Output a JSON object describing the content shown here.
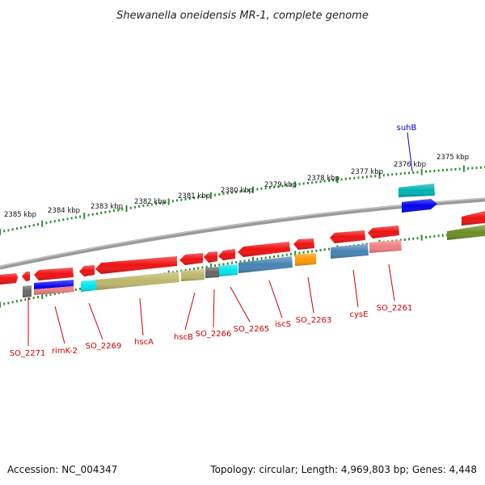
{
  "title": "Shewanella oneidensis MR-1, complete genome",
  "footer": {
    "accession": "Accession: NC_004347",
    "topology": "Topology: circular; Length: 4,969,803 bp; Genes: 4,448"
  },
  "colors": {
    "backbone": "#8a8a8a",
    "tick": "#2e8b2e",
    "gene_label": "#cc0000",
    "highlight_label": "#0000cc",
    "cds_red": "#ee1111",
    "cyan": "#00e5ee",
    "khaki": "#bdb76b",
    "steelblue": "#4682b4",
    "salmon": "#f08080",
    "darkgray": "#666666",
    "orange": "#ff9900",
    "blue": "#0000ee",
    "teal": "#00b2b2",
    "olive": "#6b8e23"
  },
  "scale": {
    "labels": [
      "2385 kbp",
      "2384 kbp",
      "2383 kbp",
      "2382 kbp",
      "2381 kbp",
      "2380 kbp",
      "2379 kbp",
      "2378 kbp",
      "2377 kbp",
      "2376 kbp",
      "2375 kbp"
    ]
  },
  "gene_labels": [
    {
      "text": "SO_2271",
      "color": "red"
    },
    {
      "text": "rimK-2",
      "color": "red"
    },
    {
      "text": "SO_2269",
      "color": "red"
    },
    {
      "text": "hscA",
      "color": "red"
    },
    {
      "text": "hscB",
      "color": "red"
    },
    {
      "text": "SO_2266",
      "color": "red"
    },
    {
      "text": "SO_2265",
      "color": "red"
    },
    {
      "text": "iscS",
      "color": "red"
    },
    {
      "text": "SO_2263",
      "color": "red"
    },
    {
      "text": "cysE",
      "color": "red"
    },
    {
      "text": "SO_2261",
      "color": "red"
    },
    {
      "text": "suhB",
      "color": "blue"
    }
  ]
}
